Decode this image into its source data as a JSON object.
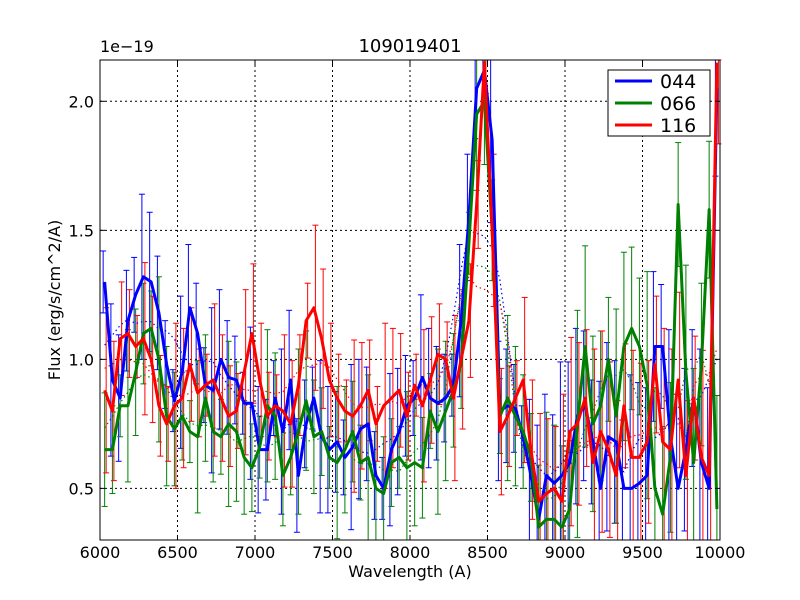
{
  "chart_data": {
    "type": "line",
    "title": "109019401",
    "xlabel": "Wavelength (A)",
    "ylabel": "Flux (erg/s/cm^2/A)",
    "offset_label": "1e−19",
    "xlim": [
      6000,
      10000
    ],
    "ylim": [
      0.3,
      2.16
    ],
    "xticks": [
      6000,
      6500,
      7000,
      7500,
      8000,
      8500,
      9000,
      9500,
      10000
    ],
    "yticks": [
      0.5,
      1.0,
      1.5,
      2.0
    ],
    "ytick_labels": [
      "0.5",
      "1.0",
      "1.5",
      "2.0"
    ],
    "grid": true,
    "legend_position": "top-right",
    "series": [
      {
        "name": "044",
        "color": "#0000ff",
        "x": [
          6030,
          6080,
          6130,
          6180,
          6230,
          6280,
          6330,
          6380,
          6430,
          6480,
          6530,
          6580,
          6630,
          6680,
          6730,
          6780,
          6830,
          6880,
          6930,
          6980,
          7030,
          7080,
          7130,
          7180,
          7230,
          7280,
          7330,
          7380,
          7430,
          7480,
          7530,
          7580,
          7630,
          7680,
          7730,
          7780,
          7830,
          7880,
          7930,
          7980,
          8030,
          8080,
          8130,
          8180,
          8230,
          8280,
          8330,
          8380,
          8430,
          8480,
          8530,
          8580,
          8630,
          8680,
          8730,
          8780,
          8830,
          8880,
          8930,
          8980,
          9030,
          9080,
          9130,
          9180,
          9230,
          9280,
          9330,
          9380,
          9430,
          9480,
          9530,
          9580,
          9630,
          9680,
          9730,
          9780,
          9830,
          9880,
          9930,
          9980
        ],
        "values": [
          1.3,
          0.92,
          0.85,
          1.15,
          1.25,
          1.32,
          1.3,
          1.18,
          0.98,
          0.84,
          0.95,
          1.2,
          1.1,
          0.9,
          0.88,
          1.0,
          0.93,
          0.92,
          0.83,
          0.83,
          0.65,
          0.65,
          0.85,
          0.72,
          0.92,
          0.55,
          0.75,
          0.85,
          0.7,
          0.65,
          0.68,
          0.62,
          0.66,
          0.73,
          0.75,
          0.55,
          0.5,
          0.65,
          0.72,
          0.82,
          0.85,
          0.93,
          0.85,
          0.83,
          0.85,
          0.9,
          1.15,
          1.55,
          2.05,
          2.12,
          1.85,
          0.8,
          0.82,
          0.81,
          0.7,
          0.55,
          0.38,
          0.55,
          0.52,
          0.55,
          0.6,
          0.78,
          0.82,
          0.68,
          0.5,
          0.7,
          0.68,
          0.5,
          0.5,
          0.52,
          0.55,
          1.05,
          1.05,
          0.7,
          0.5,
          0.65,
          0.85,
          0.6,
          0.5,
          2.05
        ]
      },
      {
        "name": "066",
        "color": "#008000",
        "x": [
          6030,
          6080,
          6130,
          6180,
          6230,
          6280,
          6330,
          6380,
          6430,
          6480,
          6530,
          6580,
          6630,
          6680,
          6730,
          6780,
          6830,
          6880,
          6930,
          6980,
          7030,
          7080,
          7130,
          7180,
          7230,
          7280,
          7330,
          7380,
          7430,
          7480,
          7530,
          7580,
          7630,
          7680,
          7730,
          7780,
          7830,
          7880,
          7930,
          7980,
          8030,
          8080,
          8130,
          8180,
          8230,
          8280,
          8330,
          8380,
          8430,
          8480,
          8530,
          8580,
          8630,
          8680,
          8730,
          8780,
          8830,
          8880,
          8930,
          8980,
          9030,
          9080,
          9130,
          9180,
          9230,
          9280,
          9330,
          9380,
          9430,
          9480,
          9530,
          9580,
          9630,
          9680,
          9730,
          9780,
          9830,
          9880,
          9930,
          9980
        ],
        "values": [
          0.65,
          0.65,
          0.82,
          0.82,
          0.95,
          1.1,
          1.12,
          1.0,
          0.78,
          0.73,
          0.78,
          0.72,
          0.7,
          0.85,
          0.72,
          0.7,
          0.75,
          0.72,
          0.62,
          0.58,
          0.66,
          0.82,
          0.78,
          0.55,
          0.62,
          0.72,
          0.84,
          0.7,
          0.72,
          0.62,
          0.6,
          0.65,
          0.72,
          0.6,
          0.62,
          0.5,
          0.48,
          0.6,
          0.62,
          0.58,
          0.6,
          0.58,
          0.8,
          0.72,
          0.8,
          0.88,
          0.98,
          1.45,
          1.95,
          2.0,
          1.5,
          0.78,
          0.85,
          0.78,
          0.72,
          0.62,
          0.35,
          0.38,
          0.38,
          0.35,
          0.42,
          0.75,
          1.05,
          0.75,
          0.82,
          1.0,
          0.78,
          1.05,
          1.12,
          1.05,
          0.9,
          0.5,
          0.4,
          0.62,
          1.6,
          0.95,
          0.6,
          0.98,
          1.58,
          0.42
        ]
      },
      {
        "name": "116",
        "color": "#ff0000",
        "x": [
          6030,
          6080,
          6130,
          6180,
          6230,
          6280,
          6330,
          6380,
          6430,
          6480,
          6530,
          6580,
          6630,
          6680,
          6730,
          6780,
          6830,
          6880,
          6930,
          6980,
          7030,
          7080,
          7130,
          7180,
          7230,
          7280,
          7330,
          7380,
          7430,
          7480,
          7530,
          7580,
          7630,
          7680,
          7730,
          7780,
          7830,
          7880,
          7930,
          7980,
          8030,
          8080,
          8130,
          8180,
          8230,
          8280,
          8330,
          8380,
          8430,
          8480,
          8530,
          8580,
          8630,
          8680,
          8730,
          8780,
          8830,
          8880,
          8930,
          8980,
          9030,
          9080,
          9130,
          9180,
          9230,
          9280,
          9330,
          9380,
          9430,
          9480,
          9530,
          9580,
          9630,
          9680,
          9730,
          9780,
          9830,
          9880,
          9930,
          9980
        ],
        "values": [
          0.88,
          0.8,
          1.08,
          1.1,
          1.05,
          1.08,
          1.0,
          0.82,
          0.75,
          0.82,
          0.85,
          0.98,
          0.87,
          0.9,
          0.92,
          0.85,
          0.78,
          0.8,
          0.95,
          1.1,
          0.92,
          0.78,
          0.82,
          0.8,
          0.75,
          0.9,
          1.15,
          1.2,
          1.08,
          0.92,
          0.85,
          0.8,
          0.78,
          0.82,
          0.88,
          0.75,
          0.82,
          0.85,
          0.88,
          0.78,
          0.9,
          0.82,
          0.92,
          1.02,
          1.0,
          0.85,
          1.0,
          1.15,
          1.6,
          2.15,
          1.5,
          0.72,
          0.78,
          0.85,
          0.92,
          0.65,
          0.45,
          0.48,
          0.5,
          0.45,
          0.72,
          0.75,
          0.85,
          0.6,
          0.72,
          0.65,
          0.55,
          0.82,
          0.62,
          0.62,
          0.68,
          0.98,
          0.68,
          0.65,
          0.92,
          0.55,
          0.85,
          0.62,
          0.55,
          2.15
        ]
      }
    ]
  }
}
